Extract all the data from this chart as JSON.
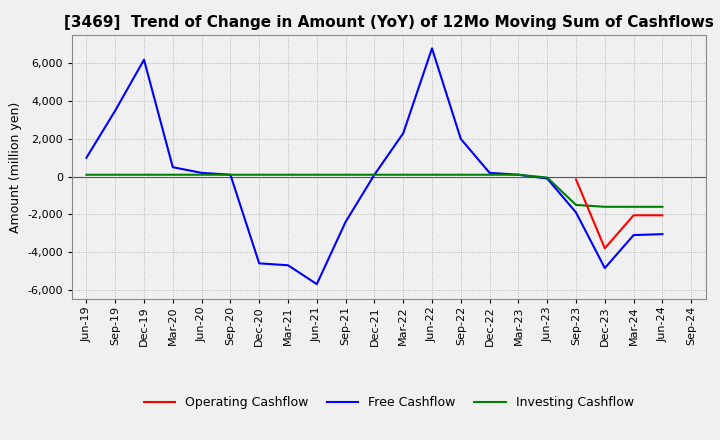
{
  "title": "[3469]  Trend of Change in Amount (YoY) of 12Mo Moving Sum of Cashflows",
  "ylabel": "Amount (million yen)",
  "background_color": "#f0f0f0",
  "plot_bg_color": "#f0f0f0",
  "grid_color": "#aaaaaa",
  "x_labels": [
    "Jun-19",
    "Sep-19",
    "Dec-19",
    "Mar-20",
    "Jun-20",
    "Sep-20",
    "Dec-20",
    "Mar-21",
    "Jun-21",
    "Sep-21",
    "Dec-21",
    "Mar-22",
    "Jun-22",
    "Sep-22",
    "Dec-22",
    "Mar-23",
    "Jun-23",
    "Sep-23",
    "Dec-23",
    "Mar-24",
    "Jun-24",
    "Sep-24"
  ],
  "operating_cashflow": [
    null,
    null,
    null,
    null,
    null,
    null,
    null,
    null,
    null,
    null,
    null,
    null,
    null,
    null,
    null,
    null,
    null,
    -150,
    -3800,
    -2050,
    -2050,
    null
  ],
  "investing_cashflow": [
    100,
    100,
    100,
    100,
    100,
    100,
    100,
    100,
    100,
    100,
    100,
    100,
    100,
    100,
    100,
    100,
    -50,
    -1500,
    -1600,
    -1600,
    -1600,
    null
  ],
  "free_cashflow": [
    1000,
    3500,
    6200,
    500,
    200,
    100,
    -4600,
    -4700,
    -5700,
    -2400,
    100,
    2300,
    6800,
    2000,
    200,
    100,
    -100,
    -1900,
    -4850,
    -3100,
    -3050,
    null
  ],
  "ylim": [
    -6500,
    7500
  ],
  "yticks": [
    -6000,
    -4000,
    -2000,
    0,
    2000,
    4000,
    6000
  ],
  "colors": {
    "operating": "#ff0000",
    "investing": "#008000",
    "free": "#0000ff"
  },
  "title_fontsize": 11,
  "ylabel_fontsize": 9,
  "tick_fontsize": 8,
  "legend_fontsize": 9
}
